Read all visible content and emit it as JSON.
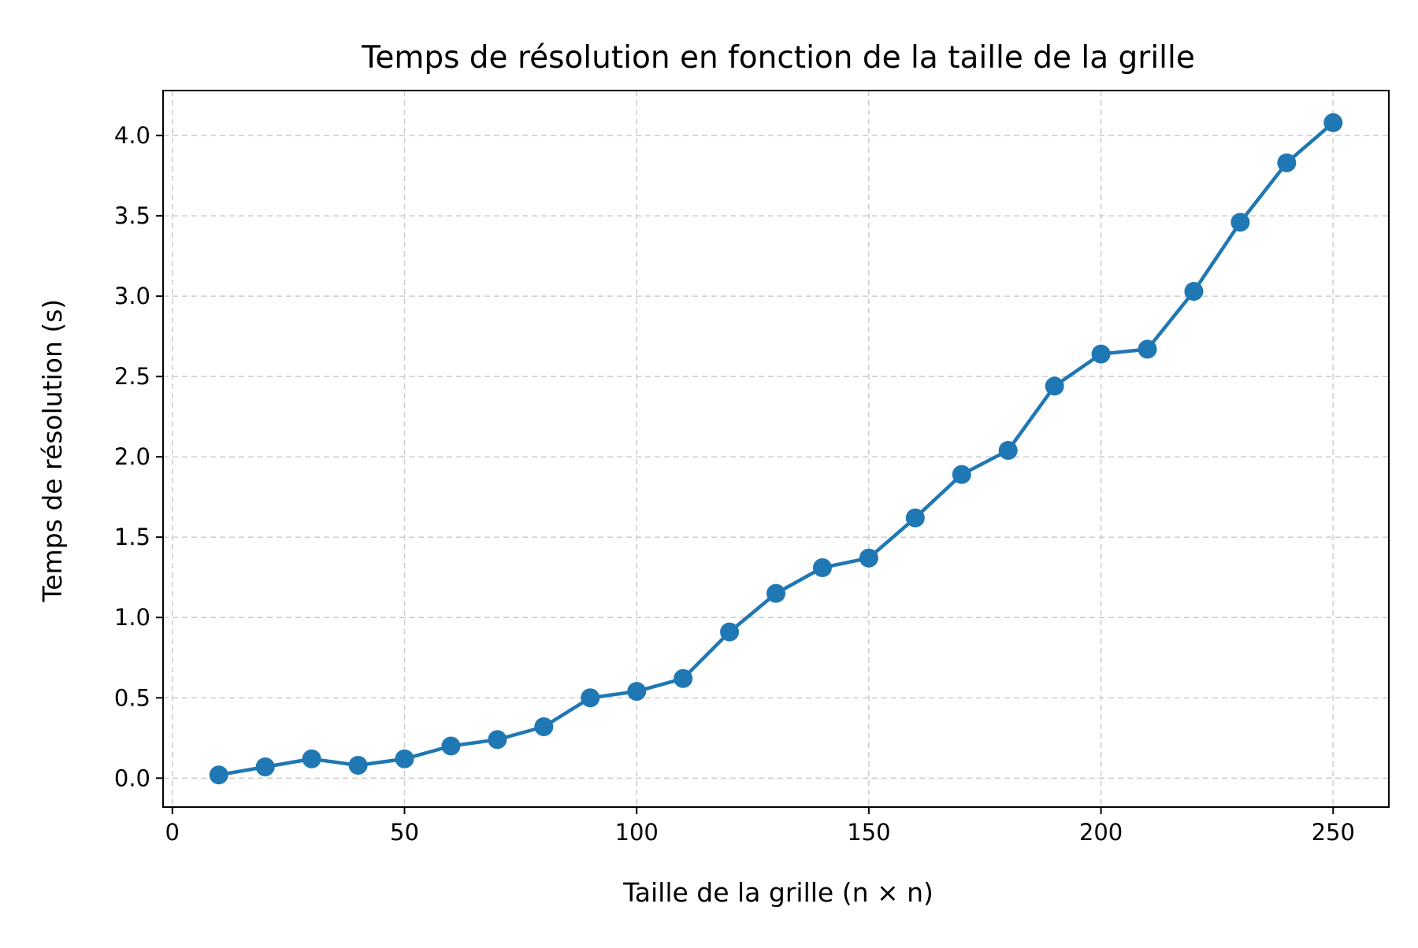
{
  "chart_data": {
    "type": "line",
    "title": "Temps de résolution en fonction de la taille de la grille",
    "xlabel": "Taille de la grille (n × n)",
    "ylabel": "Temps de résolution (s)",
    "xlim": [
      -2,
      262
    ],
    "ylim": [
      -0.18,
      4.28
    ],
    "xticks": [
      0,
      50,
      100,
      150,
      200,
      250
    ],
    "xtick_labels": [
      "0",
      "50",
      "100",
      "150",
      "200",
      "250"
    ],
    "yticks": [
      0.0,
      0.5,
      1.0,
      1.5,
      2.0,
      2.5,
      3.0,
      3.5,
      4.0
    ],
    "ytick_labels": [
      "0.0",
      "0.5",
      "1.0",
      "1.5",
      "2.0",
      "2.5",
      "3.0",
      "3.5",
      "4.0"
    ],
    "grid": true,
    "legend": "none",
    "colors": {
      "series": "#1f77b4",
      "grid": "#cccccc",
      "axes": "#000000"
    },
    "series": [
      {
        "x": [
          10,
          20,
          30,
          40,
          50,
          60,
          70,
          80,
          90,
          100,
          110,
          120,
          130,
          140,
          150,
          160,
          170,
          180,
          190,
          200,
          210,
          220,
          230,
          240,
          250
        ],
        "y": [
          0.02,
          0.07,
          0.12,
          0.08,
          0.12,
          0.2,
          0.24,
          0.32,
          0.5,
          0.54,
          0.62,
          0.91,
          1.15,
          1.31,
          1.37,
          1.62,
          1.89,
          2.04,
          2.44,
          2.64,
          2.67,
          3.03,
          3.46,
          3.83,
          4.08
        ]
      }
    ]
  }
}
